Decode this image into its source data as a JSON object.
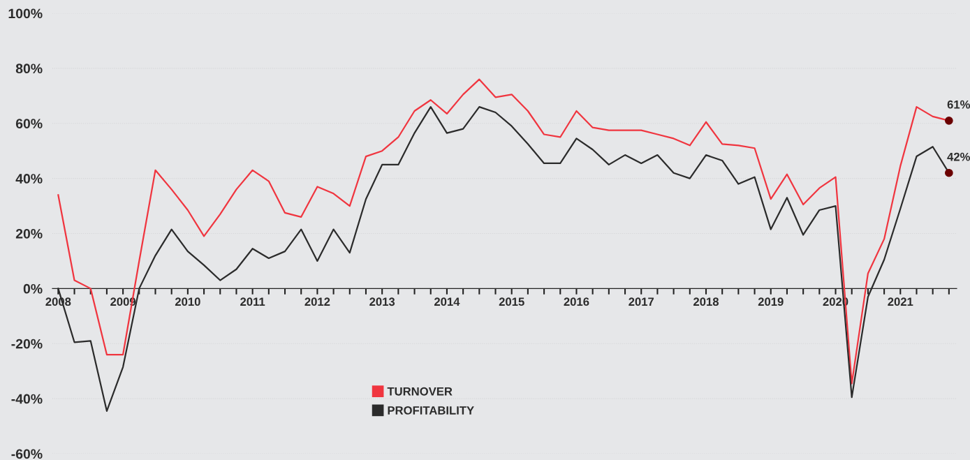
{
  "chart_data": {
    "type": "line",
    "x": [
      2008,
      2008.25,
      2008.5,
      2008.75,
      2009,
      2009.25,
      2009.5,
      2009.75,
      2010,
      2010.25,
      2010.5,
      2010.75,
      2011,
      2011.25,
      2011.5,
      2011.75,
      2012,
      2012.25,
      2012.5,
      2012.75,
      2013,
      2013.25,
      2013.5,
      2013.75,
      2014,
      2014.25,
      2014.5,
      2014.75,
      2015,
      2015.25,
      2015.5,
      2015.75,
      2016,
      2016.25,
      2016.5,
      2016.75,
      2017,
      2017.25,
      2017.5,
      2017.75,
      2018,
      2018.25,
      2018.5,
      2018.75,
      2019,
      2019.25,
      2019.5,
      2019.75,
      2020,
      2020.25,
      2020.5,
      2020.75,
      2021,
      2021.25,
      2021.5,
      2021.75
    ],
    "series": [
      {
        "name": "TURNOVER",
        "color": "#f0353f",
        "values": [
          34,
          3,
          0,
          -24,
          -24,
          10,
          43,
          36,
          28.5,
          19,
          27,
          36,
          43,
          39,
          27.5,
          26,
          37,
          34.5,
          30,
          48,
          50,
          55,
          64.5,
          68.5,
          63.5,
          70.5,
          76,
          69.5,
          70.5,
          64.5,
          56,
          55,
          64.5,
          58.5,
          57.5,
          57.5,
          57.5,
          56,
          54.5,
          52,
          60.5,
          52.5,
          52,
          51,
          32.5,
          41.5,
          30.5,
          36.5,
          40.5,
          -34.5,
          5.5,
          18,
          44.5,
          66,
          62.5,
          61
        ]
      },
      {
        "name": "PROFITABILITY",
        "color": "#2b2b2b",
        "values": [
          0,
          -19.5,
          -19,
          -44.5,
          -28.5,
          0,
          12,
          21.5,
          13.5,
          8.5,
          3,
          7,
          14.5,
          11,
          13.5,
          21.5,
          10,
          21.5,
          13,
          32.5,
          45,
          45,
          56.5,
          66,
          56.5,
          58,
          66,
          64,
          59,
          52.5,
          45.5,
          45.5,
          54.5,
          50.5,
          45,
          48.5,
          45.5,
          48.5,
          42,
          40,
          48.5,
          46.5,
          38,
          40.5,
          21.5,
          33,
          19.5,
          28.5,
          30,
          -39.5,
          -3,
          10.5,
          29,
          48,
          51.5,
          42
        ]
      }
    ],
    "annotations": [
      {
        "text": "61%",
        "x": 2021.75,
        "y": 61
      },
      {
        "text": "42%",
        "x": 2021.75,
        "y": 42
      }
    ],
    "xlim": [
      2007.91,
      2021.87
    ],
    "xticks": [
      {
        "value": 2008,
        "label": "2008"
      },
      {
        "value": 2008.25,
        "label": null
      },
      {
        "value": 2008.5,
        "label": null
      },
      {
        "value": 2008.75,
        "label": null
      },
      {
        "value": 2009,
        "label": "2009"
      },
      {
        "value": 2009.25,
        "label": null
      },
      {
        "value": 2009.5,
        "label": null
      },
      {
        "value": 2009.75,
        "label": null
      },
      {
        "value": 2010,
        "label": "2010"
      },
      {
        "value": 2010.25,
        "label": null
      },
      {
        "value": 2010.5,
        "label": null
      },
      {
        "value": 2010.75,
        "label": null
      },
      {
        "value": 2011,
        "label": "2011"
      },
      {
        "value": 2011.25,
        "label": null
      },
      {
        "value": 2011.5,
        "label": null
      },
      {
        "value": 2011.75,
        "label": null
      },
      {
        "value": 2012,
        "label": "2012"
      },
      {
        "value": 2012.25,
        "label": null
      },
      {
        "value": 2012.5,
        "label": null
      },
      {
        "value": 2012.75,
        "label": null
      },
      {
        "value": 2013,
        "label": "2013"
      },
      {
        "value": 2013.25,
        "label": null
      },
      {
        "value": 2013.5,
        "label": null
      },
      {
        "value": 2013.75,
        "label": null
      },
      {
        "value": 2014,
        "label": "2014"
      },
      {
        "value": 2014.25,
        "label": null
      },
      {
        "value": 2014.5,
        "label": null
      },
      {
        "value": 2014.75,
        "label": null
      },
      {
        "value": 2015,
        "label": "2015"
      },
      {
        "value": 2015.25,
        "label": null
      },
      {
        "value": 2015.5,
        "label": null
      },
      {
        "value": 2015.75,
        "label": null
      },
      {
        "value": 2016,
        "label": "2016"
      },
      {
        "value": 2016.25,
        "label": null
      },
      {
        "value": 2016.5,
        "label": null
      },
      {
        "value": 2016.75,
        "label": null
      },
      {
        "value": 2017,
        "label": "2017"
      },
      {
        "value": 2017.25,
        "label": null
      },
      {
        "value": 2017.5,
        "label": null
      },
      {
        "value": 2017.75,
        "label": null
      },
      {
        "value": 2018,
        "label": "2018"
      },
      {
        "value": 2018.25,
        "label": null
      },
      {
        "value": 2018.5,
        "label": null
      },
      {
        "value": 2018.75,
        "label": null
      },
      {
        "value": 2019,
        "label": "2019"
      },
      {
        "value": 2019.25,
        "label": null
      },
      {
        "value": 2019.5,
        "label": null
      },
      {
        "value": 2019.75,
        "label": null
      },
      {
        "value": 2020,
        "label": "2020"
      },
      {
        "value": 2020.25,
        "label": null
      },
      {
        "value": 2020.5,
        "label": null
      },
      {
        "value": 2020.75,
        "label": null
      },
      {
        "value": 2021,
        "label": "2021"
      },
      {
        "value": 2021.25,
        "label": null
      },
      {
        "value": 2021.5,
        "label": null
      },
      {
        "value": 2021.75,
        "label": null
      }
    ],
    "ylim": [
      -60,
      100
    ],
    "yticks": [
      {
        "value": -60,
        "label": "-60%"
      },
      {
        "value": -40,
        "label": "-40%"
      },
      {
        "value": -20,
        "label": "-20%"
      },
      {
        "value": 0,
        "label": "0%"
      },
      {
        "value": 20,
        "label": "20%"
      },
      {
        "value": 40,
        "label": "40%"
      },
      {
        "value": 60,
        "label": "60%"
      },
      {
        "value": 80,
        "label": "80%"
      },
      {
        "value": 100,
        "label": "100%"
      }
    ],
    "grid": "y",
    "legend": "bottom",
    "marker": "none",
    "line_style": "solid"
  }
}
